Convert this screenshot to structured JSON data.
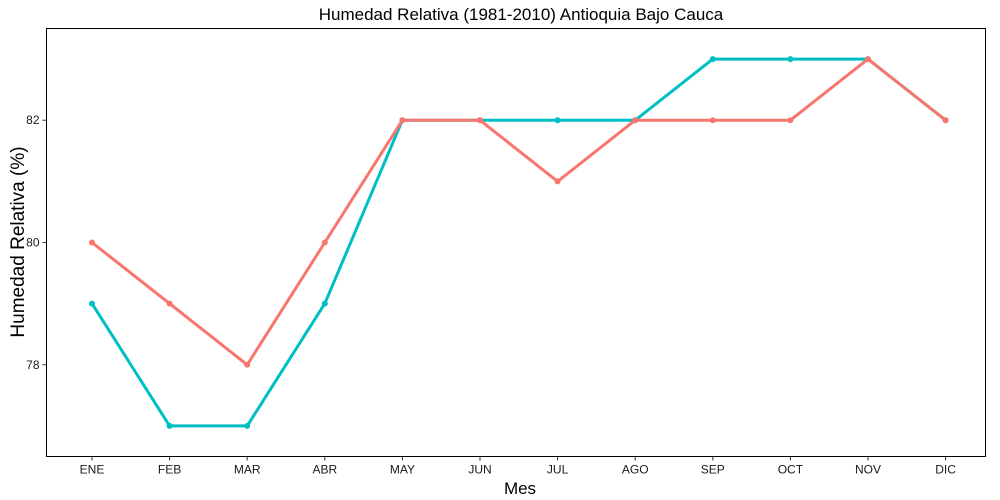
{
  "chart_data": {
    "type": "line",
    "title": "Humedad Relativa (1981-2010)  Antioquia Bajo Cauca",
    "xlabel": "Mes",
    "ylabel": "Humedad Relativa   (%)",
    "categories": [
      "ENE",
      "FEB",
      "MAR",
      "ABR",
      "MAY",
      "JUN",
      "JUL",
      "AGO",
      "SEP",
      "OCT",
      "NOV",
      "DIC"
    ],
    "yticks": [
      78,
      80,
      82
    ],
    "ylim": [
      76.5,
      83.5
    ],
    "grid": false,
    "legend": "none",
    "series": [
      {
        "color": "#00BFC4",
        "values": [
          79,
          77,
          77,
          79,
          82,
          82,
          82,
          82,
          83,
          83,
          83,
          82
        ]
      },
      {
        "color": "#F8766D",
        "values": [
          80,
          79,
          78,
          80,
          82,
          82,
          81,
          82,
          82,
          82,
          83,
          82
        ]
      }
    ]
  }
}
